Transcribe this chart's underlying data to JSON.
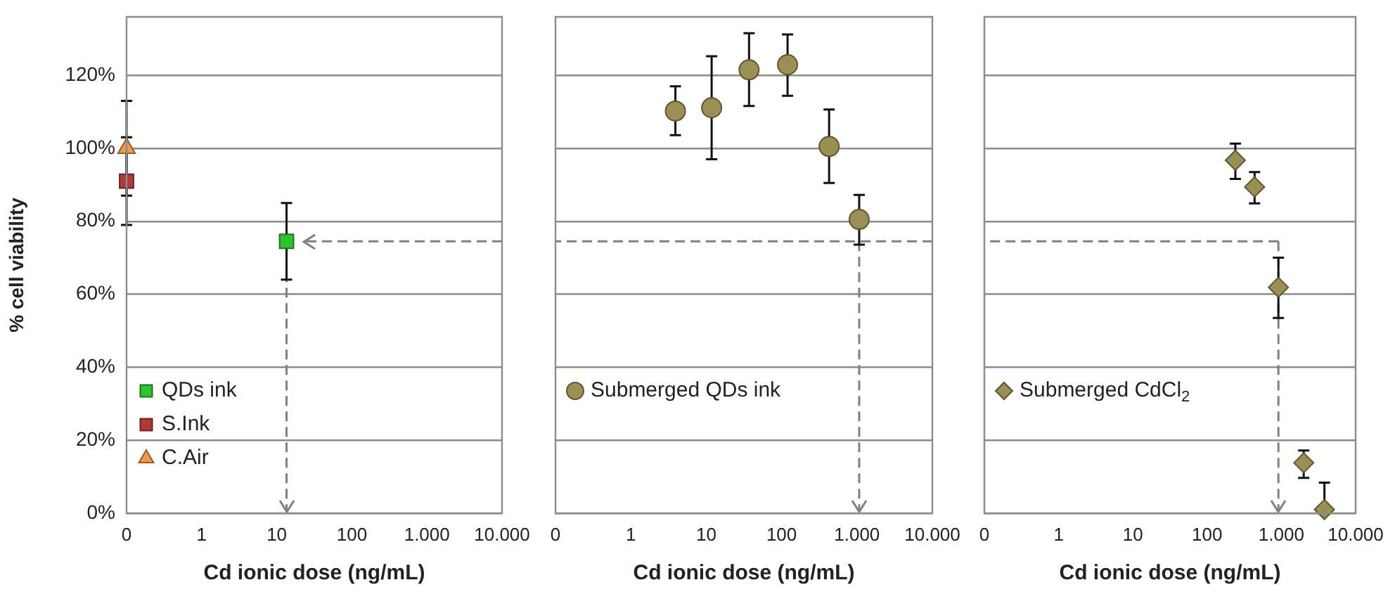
{
  "chart_data": [
    {
      "type": "scatter",
      "xlabel": "Cd ionic dose (ng/mL)",
      "ylabel": "% cell viability",
      "log": "x",
      "xlim": [
        0.1,
        10000
      ],
      "xticks": [
        {
          "value": 0.1,
          "label": "0"
        },
        1,
        10,
        100,
        {
          "value": 1000,
          "label": "1.000"
        },
        {
          "value": 10000,
          "label": "10.000"
        }
      ],
      "ylim": [
        0,
        136
      ],
      "yticks": [
        {
          "value": 0,
          "label": "0%"
        },
        {
          "value": 20,
          "label": "20%"
        },
        {
          "value": 40,
          "label": "40%"
        },
        {
          "value": 60,
          "label": "60%"
        },
        {
          "value": 80,
          "label": "80%"
        },
        {
          "value": 100,
          "label": "100%"
        },
        {
          "value": 120,
          "label": "120%"
        }
      ],
      "grid": "y",
      "legend": "bottom left",
      "ref_lines": [
        {
          "axis": "y",
          "value": 74.5,
          "color": "#808080",
          "line_style": "dashed"
        },
        {
          "axis": "x",
          "value": 13.5,
          "color": "#808080",
          "line_style": "dashed"
        }
      ],
      "series": [
        {
          "name": "QDs ink",
          "color": "#2fc42f",
          "marker": "square",
          "x": [
            13.5
          ],
          "values": [
            74.5
          ],
          "errors": [
            [
              64,
              85
            ]
          ]
        },
        {
          "name": "S.Ink",
          "color": "#b03a3a",
          "marker": "square",
          "x": [
            0.1
          ],
          "values": [
            91
          ],
          "errors": [
            [
              79,
              103
            ]
          ]
        },
        {
          "name": "C.Air",
          "color": "#f29a4a",
          "marker": "triangle",
          "x": [
            0.1
          ],
          "values": [
            100
          ],
          "errors": [
            [
              87,
              113
            ]
          ]
        }
      ]
    },
    {
      "type": "scatter",
      "xlabel": "Cd ionic dose (ng/mL)",
      "log": "x",
      "xlim": [
        0.1,
        10000
      ],
      "xticks": [
        {
          "value": 0.1,
          "label": "0"
        },
        1,
        10,
        100,
        {
          "value": 1000,
          "label": "1.000"
        },
        {
          "value": 10000,
          "label": "10.000"
        }
      ],
      "ylim": [
        0,
        136
      ],
      "yticks": [
        0,
        20,
        40,
        60,
        80,
        100,
        120
      ],
      "grid": "y",
      "legend": "bottom left",
      "tick_labels": "x",
      "ref_lines": [
        {
          "axis": "y",
          "value": 74.5,
          "color": "#808080",
          "line_style": "dashed"
        },
        {
          "axis": "x",
          "value": 1070,
          "color": "#808080",
          "line_style": "dashed"
        }
      ],
      "series": [
        {
          "name": "Submerged QDs ink",
          "color": "#9c8f55",
          "marker": "circle",
          "x": [
            3.9,
            11.8,
            37,
            120,
            427,
            1070
          ],
          "values": [
            110.2,
            111.1,
            121.5,
            122.9,
            100.5,
            80.5
          ],
          "errors": [
            [
              103.6,
              117
            ],
            [
              97,
              125.2
            ],
            [
              111.6,
              131.5
            ],
            [
              114.4,
              131.2
            ],
            [
              90.5,
              110.6
            ],
            [
              73.6,
              87.2
            ]
          ]
        }
      ]
    },
    {
      "type": "scatter",
      "xlabel": "Cd ionic dose (ng/mL)",
      "log": "x",
      "xlim": [
        0.1,
        10000
      ],
      "xticks": [
        {
          "value": 0.1,
          "label": "0"
        },
        1,
        10,
        100,
        {
          "value": 1000,
          "label": "1.000"
        },
        {
          "value": 10000,
          "label": "10.000"
        }
      ],
      "ylim": [
        0,
        136
      ],
      "yticks": [
        0,
        20,
        40,
        60,
        80,
        100,
        120
      ],
      "grid": "y",
      "legend": "bottom left",
      "tick_labels": "x",
      "ref_lines": [
        {
          "axis": "y",
          "value": 74.5,
          "color": "#808080",
          "line_style": "dashed"
        },
        {
          "axis": "x",
          "value": 912,
          "color": "#808080",
          "line_style": "dashed"
        }
      ],
      "series": [
        {
          "name": "Submerged CdCl$_{2}$",
          "color": "#9c8f55",
          "marker": "diamond",
          "x": [
            240,
            436,
            912,
            2000,
            3800
          ],
          "values": [
            96.7,
            89.4,
            61.9,
            13.8,
            1.0
          ],
          "errors": [
            [
              91.6,
              101.3
            ],
            [
              84.9,
              93.5
            ],
            [
              53.5,
              70
            ],
            [
              9.7,
              17.2
            ],
            [
              0,
              8.4
            ]
          ]
        }
      ]
    }
  ]
}
